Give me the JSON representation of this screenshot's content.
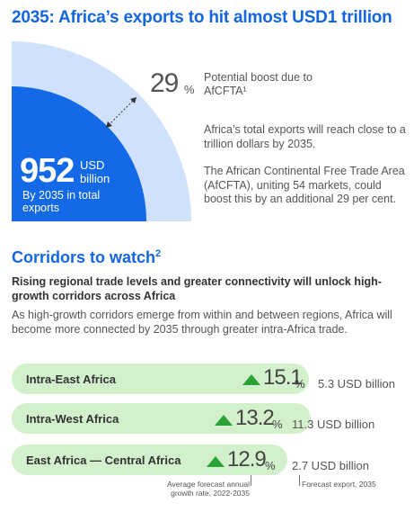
{
  "header": {
    "title": "2035: Africa’s exports to hit almost USD1 trillion"
  },
  "headline_stat": {
    "value": "952",
    "unit_line1": "USD",
    "unit_line2": "billion",
    "caption": "By 2035 in total exports"
  },
  "boost": {
    "value": "29",
    "percent_sign": "%",
    "label": "Potential boost due to AfCFTA¹"
  },
  "paragraphs": {
    "p1": "Africa’s total exports will reach close to a trillion dollars by 2035.",
    "p2": "The African Continental Free Trade Area (AfCFTA), uniting 54 markets, could boost this by an additional 29 per cent."
  },
  "corridors": {
    "heading": "Corridors to watch",
    "heading_sup": "2",
    "subheading": "Rising regional trade levels and greater connectivity will unlock high-growth corridors across Africa",
    "body": "As high-growth corridors emerge from within and between regions, Africa will become more connected by 2035 through greater intra-Africa trade.",
    "rows": [
      {
        "name": "Intra-East Africa",
        "rate": "15.1",
        "pct": "%",
        "export": "5.3 USD billion"
      },
      {
        "name": "Intra-West Africa",
        "rate": "13.2",
        "pct": "%",
        "export": "11.3 USD billion"
      },
      {
        "name": "East Africa — Central Africa",
        "rate": "12.9",
        "pct": "%",
        "export": "2.7 USD billion"
      }
    ],
    "footnote_rate": "Average forecast annual growth rate, 2022-2035",
    "footnote_export": "Forecast export, 2035"
  },
  "colors": {
    "brand_blue": "#1466e0",
    "light_blue": "#cfe1fb",
    "pill_green": "#d3f0cc",
    "arrow_green": "#2aa236"
  },
  "icons": {
    "growth": "up-triangle-icon",
    "boost_arrow": "diagonal-double-arrow-icon"
  }
}
